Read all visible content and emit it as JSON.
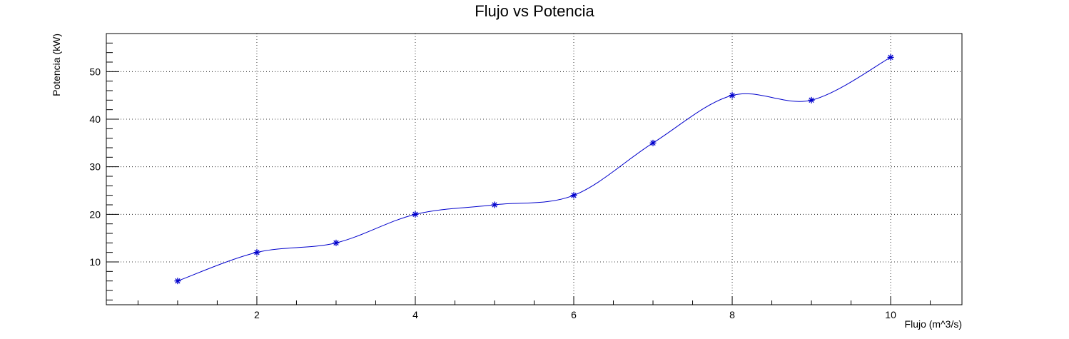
{
  "chart_data": {
    "type": "line",
    "title": "Flujo vs Potencia",
    "xlabel": "Flujo (m^3/s)",
    "ylabel": "Potencia (kW)",
    "xlim": [
      0.1,
      10.9
    ],
    "ylim": [
      1,
      58
    ],
    "x_ticks": [
      2,
      4,
      6,
      8,
      10
    ],
    "y_ticks": [
      10,
      20,
      30,
      40,
      50
    ],
    "grid": true,
    "smooth": true,
    "marker": "asterisk",
    "color": "#0000cc",
    "series": [
      {
        "x": [
          1,
          2,
          3,
          4,
          5,
          6,
          7,
          8,
          9,
          10
        ],
        "values": [
          6,
          12,
          14,
          20,
          22,
          24,
          35,
          45,
          44,
          53
        ]
      }
    ]
  }
}
